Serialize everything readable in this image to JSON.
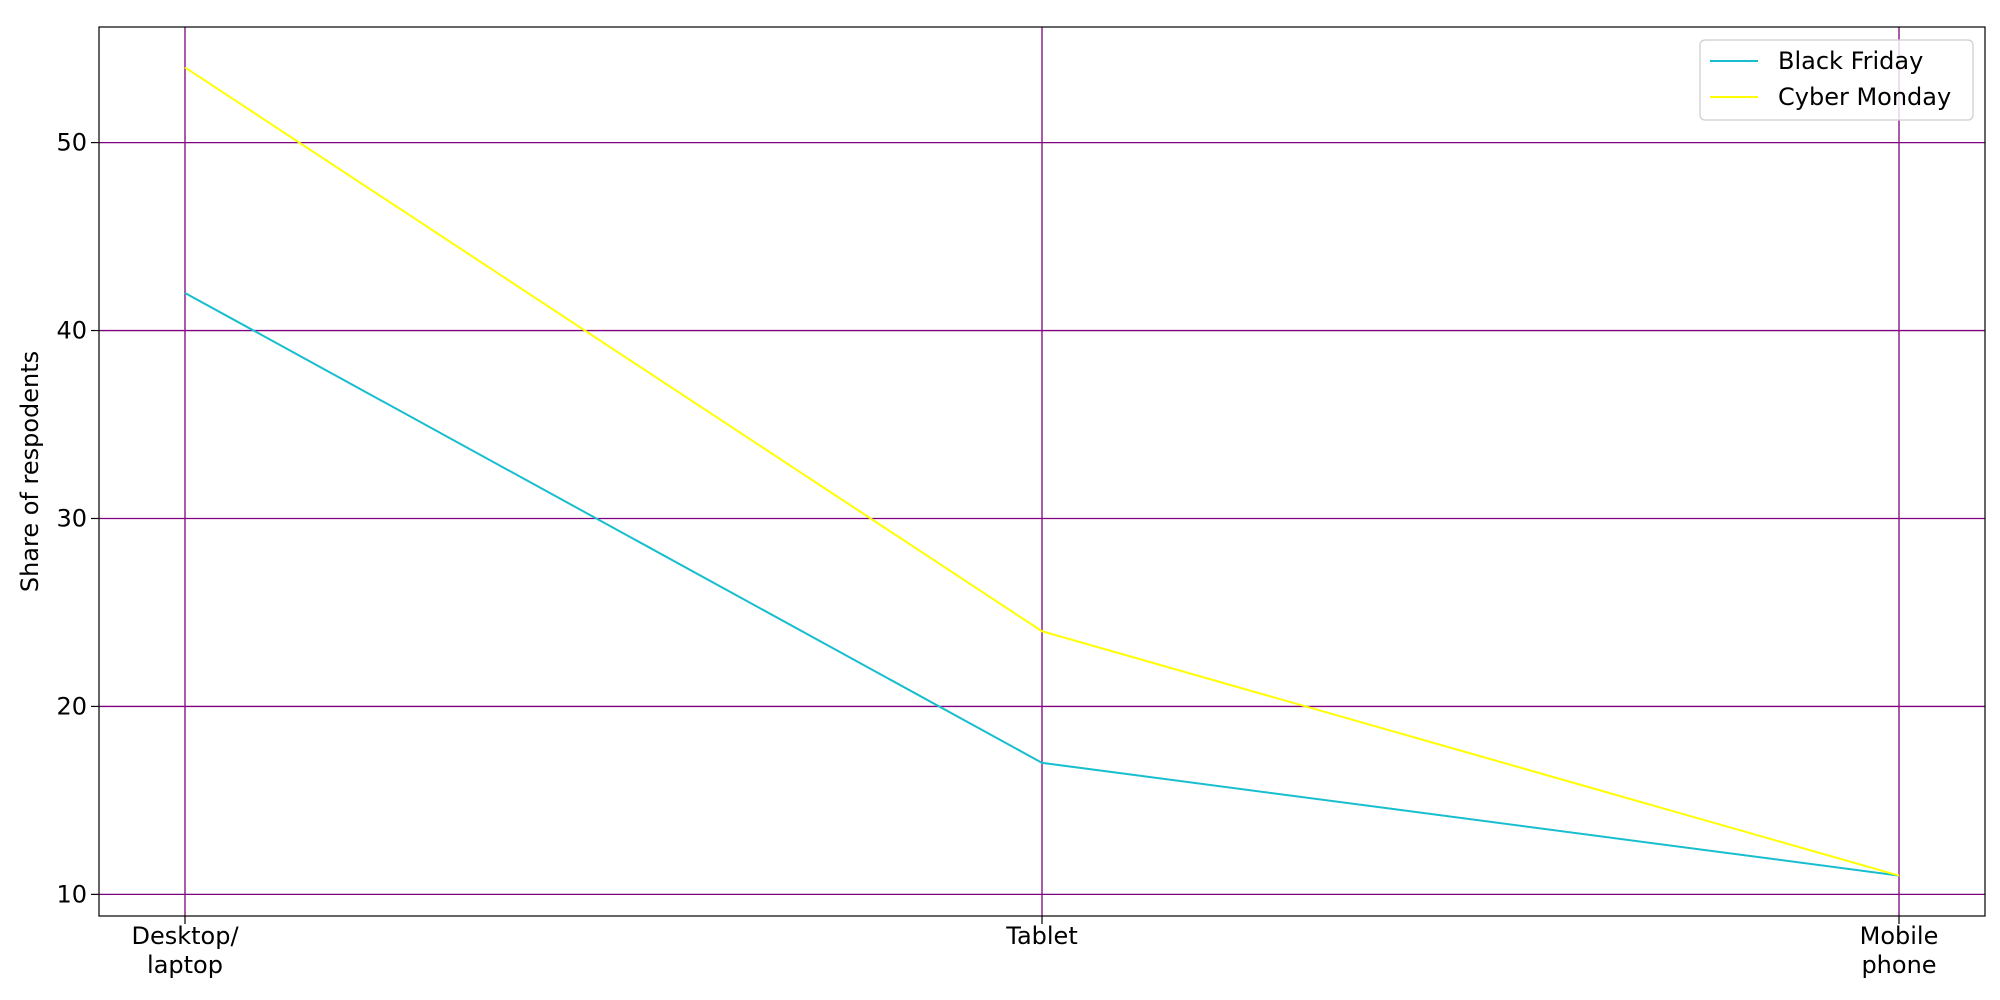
{
  "chart_data": {
    "type": "line",
    "title": "",
    "xlabel": "",
    "ylabel": "Share of respodents",
    "categories": [
      [
        "Desktop/",
        "laptop"
      ],
      [
        "Tablet"
      ],
      [
        "Mobile",
        "phone"
      ]
    ],
    "series": [
      {
        "name": "Black Friday",
        "values": [
          42,
          17,
          11
        ],
        "color": "#17becf"
      },
      {
        "name": "Cyber Monday",
        "values": [
          54,
          24,
          11
        ],
        "color": "#ffff00"
      }
    ],
    "ylim": [
      8.85,
      56.15
    ],
    "yticks": [
      10,
      20,
      30,
      40,
      50
    ],
    "grid": true,
    "grid_color": "#800080",
    "legend_position": "top-right"
  }
}
